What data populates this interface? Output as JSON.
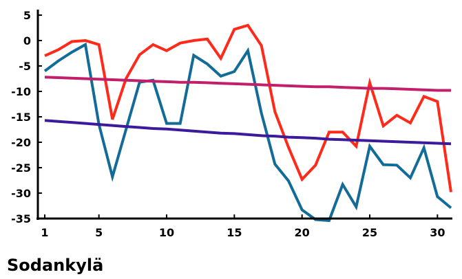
{
  "chart_data": {
    "type": "line",
    "title": "Sodankylä",
    "xlabel": "",
    "ylabel": "",
    "x": [
      1,
      2,
      3,
      4,
      5,
      6,
      7,
      8,
      9,
      10,
      11,
      12,
      13,
      14,
      15,
      16,
      17,
      18,
      19,
      20,
      21,
      22,
      23,
      24,
      25,
      26,
      27,
      28,
      29,
      30,
      31
    ],
    "xlim": [
      1,
      31
    ],
    "ylim": [
      -35,
      5
    ],
    "x_ticks": [
      1,
      5,
      10,
      15,
      20,
      25,
      30
    ],
    "y_ticks": [
      5,
      0,
      -5,
      -10,
      -15,
      -20,
      -25,
      -30,
      -35
    ],
    "grid": false,
    "legend": "none",
    "series": [
      {
        "color": "#ff2a1a",
        "values": [
          -3.0,
          -1.8,
          -0.2,
          0.0,
          -0.8,
          -15.5,
          -7.5,
          -2.8,
          -0.8,
          -2.0,
          -0.5,
          0.0,
          0.3,
          -3.5,
          2.2,
          3.0,
          -1.0,
          -14.0,
          -21.0,
          -27.3,
          -24.5,
          -18.0,
          -18.0,
          -20.8,
          -8.3,
          -16.8,
          -14.7,
          -16.2,
          -11.0,
          -12.0,
          -29.8
        ]
      },
      {
        "color": "#136b98",
        "values": [
          -6.0,
          -4.0,
          -2.3,
          -0.8,
          -16.5,
          -26.8,
          -17.5,
          -8.2,
          -7.8,
          -16.3,
          -16.3,
          -2.9,
          -4.6,
          -7.0,
          -6.1,
          -2.0,
          -14.3,
          -24.3,
          -27.6,
          -33.3,
          -35.2,
          -35.4,
          -28.3,
          -32.7,
          -20.8,
          -24.4,
          -24.5,
          -27.0,
          -21.1,
          -30.7,
          -32.9
        ]
      },
      {
        "color": "#c21f6a",
        "values": [
          -7.2,
          -7.3,
          -7.4,
          -7.5,
          -7.6,
          -7.7,
          -7.8,
          -7.9,
          -8.0,
          -8.1,
          -8.2,
          -8.2,
          -8.3,
          -8.4,
          -8.5,
          -8.6,
          -8.7,
          -8.8,
          -8.9,
          -9.0,
          -9.1,
          -9.1,
          -9.2,
          -9.3,
          -9.4,
          -9.4,
          -9.5,
          -9.6,
          -9.7,
          -9.8,
          -9.8
        ]
      },
      {
        "color": "#3b1a9c",
        "values": [
          -15.7,
          -15.9,
          -16.1,
          -16.3,
          -16.5,
          -16.7,
          -16.9,
          -17.1,
          -17.3,
          -17.4,
          -17.6,
          -17.8,
          -18.0,
          -18.2,
          -18.3,
          -18.5,
          -18.7,
          -18.8,
          -19.0,
          -19.1,
          -19.2,
          -19.4,
          -19.5,
          -19.6,
          -19.7,
          -19.8,
          -19.9,
          -20.0,
          -20.1,
          -20.2,
          -20.3
        ]
      }
    ]
  }
}
